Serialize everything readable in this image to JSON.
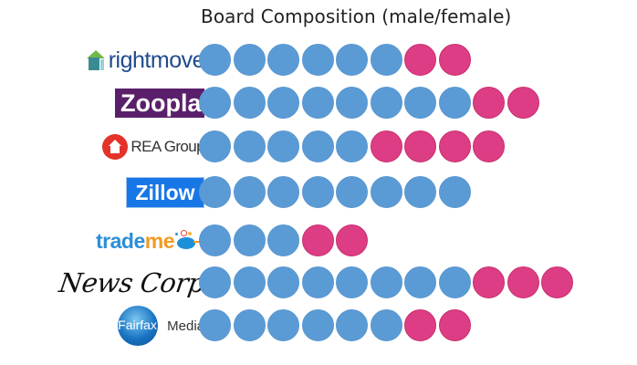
{
  "title": "Board Composition (male/female)",
  "colors": {
    "male": "#5b9bd5",
    "female": "#dd3d84"
  },
  "legend": {
    "male_icon": "blue-circle-icon",
    "female_icon": "pink-circle-icon"
  },
  "companies": [
    {
      "name": "rightmove",
      "logo_text": "rightmove",
      "male": 6,
      "female": 2
    },
    {
      "name": "Zoopla",
      "logo_text": "Zoopla",
      "male": 8,
      "female": 2
    },
    {
      "name": "REA Group",
      "logo_text": "REA Group",
      "male": 5,
      "female": 4
    },
    {
      "name": "Zillow",
      "logo_text": "Zillow",
      "male": 8,
      "female": 0
    },
    {
      "name": "trademe",
      "logo_text_1": "trade",
      "logo_text_2": "me",
      "male": 3,
      "female": 2
    },
    {
      "name": "News Corp",
      "logo_text": "News Corp",
      "male": 8,
      "female": 3
    },
    {
      "name": "Fairfax Media",
      "logo_text_1": "Fairfax",
      "logo_text_2": "Media",
      "male": 6,
      "female": 2
    }
  ],
  "chart_data": {
    "type": "table",
    "title": "Board Composition (male/female)",
    "categories": [
      "rightmove",
      "Zoopla",
      "REA Group",
      "Zillow",
      "trademe",
      "News Corp",
      "Fairfax Media"
    ],
    "series": [
      {
        "name": "male",
        "color": "#5b9bd5",
        "values": [
          6,
          8,
          5,
          8,
          3,
          8,
          6
        ]
      },
      {
        "name": "female",
        "color": "#dd3d84",
        "values": [
          2,
          2,
          4,
          0,
          2,
          3,
          2
        ]
      }
    ],
    "xlabel": "",
    "ylabel": "",
    "grid": false,
    "legend": "none",
    "notes": "Pictogram: each circle = one board member; blue = male, pink = female"
  }
}
